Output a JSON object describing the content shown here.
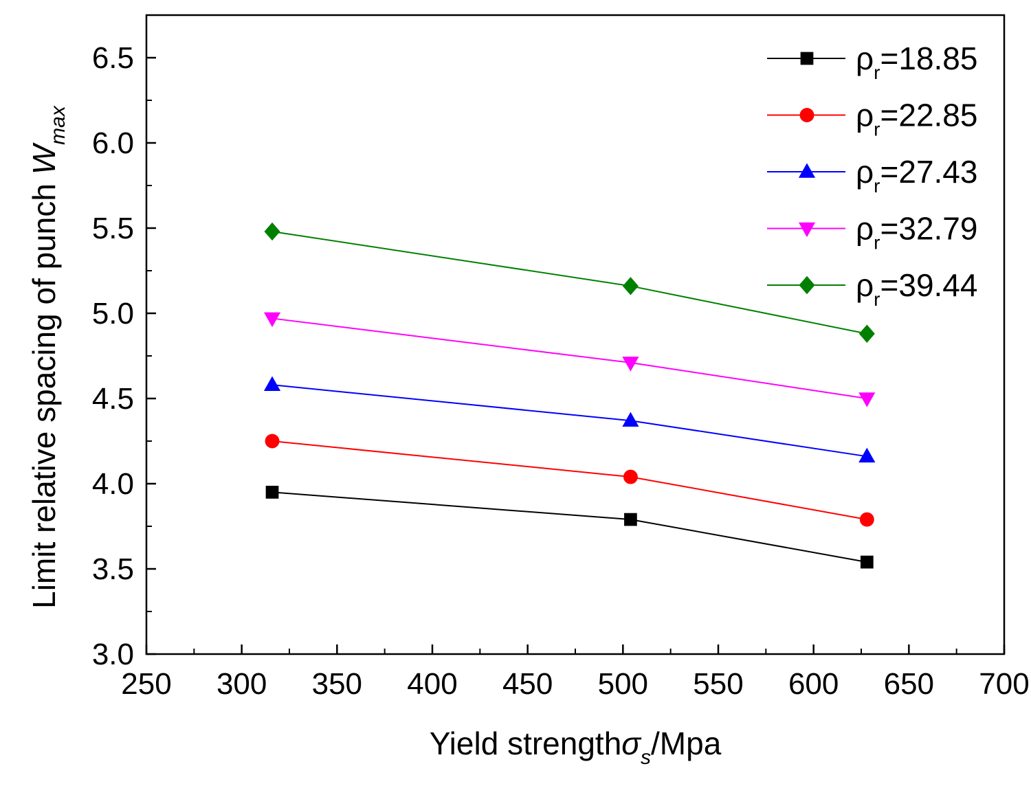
{
  "chart_data": {
    "type": "line",
    "title": "",
    "xlabel": {
      "main": "Yield strength",
      "symbol": "σ",
      "subscript": "s",
      "unit": "/Mpa"
    },
    "ylabel": {
      "main": "Limit relative spacing of punch ",
      "symbol": "W",
      "subscript": "max"
    },
    "xlim": [
      250,
      700
    ],
    "ylim": [
      3.0,
      6.75
    ],
    "xticks": [
      250,
      300,
      350,
      400,
      450,
      500,
      550,
      600,
      650,
      700
    ],
    "xtick_labels": [
      "250",
      "300",
      "350",
      "400",
      "450",
      "500",
      "550",
      "600",
      "650",
      "700"
    ],
    "yticks": [
      3.0,
      3.5,
      4.0,
      4.5,
      5.0,
      5.5,
      6.0,
      6.5
    ],
    "ytick_labels": [
      "3.0",
      "3.5",
      "4.0",
      "4.5",
      "5.0",
      "5.5",
      "6.0",
      "6.5"
    ],
    "legend_position": "top-right",
    "x": [
      316,
      504,
      628
    ],
    "series": [
      {
        "name": "ρ",
        "sub": "r",
        "value": "=18.85",
        "color": "#000000",
        "marker": "square",
        "values": [
          3.95,
          3.79,
          3.54
        ]
      },
      {
        "name": "ρ",
        "sub": "r",
        "value": "=22.85",
        "color": "#ff0000",
        "marker": "circle",
        "values": [
          4.25,
          4.04,
          3.79
        ]
      },
      {
        "name": "ρ",
        "sub": "r",
        "value": "=27.43",
        "color": "#0000ff",
        "marker": "triangle-up",
        "values": [
          4.58,
          4.37,
          4.16
        ]
      },
      {
        "name": "ρ",
        "sub": "r",
        "value": "=32.79",
        "color": "#ff00ff",
        "marker": "triangle-down",
        "values": [
          4.97,
          4.71,
          4.5
        ]
      },
      {
        "name": "ρ",
        "sub": "r",
        "value": "=39.44",
        "color": "#008000",
        "marker": "diamond",
        "values": [
          5.48,
          5.16,
          4.88
        ]
      }
    ]
  }
}
